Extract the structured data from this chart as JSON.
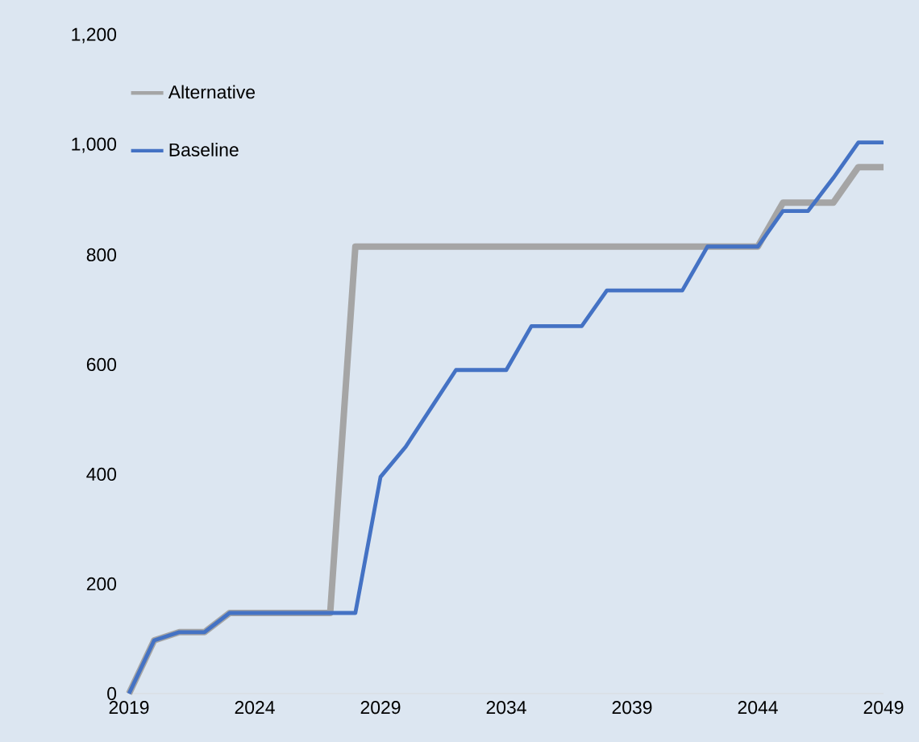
{
  "chart_data": {
    "type": "line",
    "x": [
      2019,
      2020,
      2021,
      2022,
      2023,
      2024,
      2025,
      2026,
      2027,
      2028,
      2029,
      2030,
      2031,
      2032,
      2033,
      2034,
      2035,
      2036,
      2037,
      2038,
      2039,
      2040,
      2041,
      2042,
      2043,
      2044,
      2045,
      2046,
      2047,
      2048,
      2049
    ],
    "series": [
      {
        "name": "Alternative",
        "color": "#a5a5a5",
        "values": [
          0,
          97,
          112,
          112,
          147,
          147,
          147,
          147,
          147,
          815,
          815,
          815,
          815,
          815,
          815,
          815,
          815,
          815,
          815,
          815,
          815,
          815,
          815,
          815,
          815,
          815,
          895,
          895,
          895,
          960,
          960
        ]
      },
      {
        "name": "Baseline",
        "color": "#4472c4",
        "values": [
          0,
          97,
          112,
          112,
          147,
          147,
          147,
          147,
          147,
          147,
          395,
          450,
          520,
          590,
          590,
          590,
          670,
          670,
          670,
          735,
          735,
          735,
          735,
          815,
          815,
          815,
          880,
          880,
          940,
          1005,
          1005
        ]
      }
    ],
    "xlim": [
      2019,
      2049
    ],
    "xticks": [
      2019,
      2024,
      2029,
      2034,
      2039,
      2044,
      2049
    ],
    "ylim": [
      0,
      1200
    ],
    "yticks": [
      0,
      200,
      400,
      600,
      800,
      {
        "value": 1000,
        "label": "1,000"
      },
      {
        "value": 1200,
        "label": "1,200"
      }
    ],
    "grid": false,
    "legend": "top left",
    "marker": "none",
    "line_style": "solid"
  }
}
